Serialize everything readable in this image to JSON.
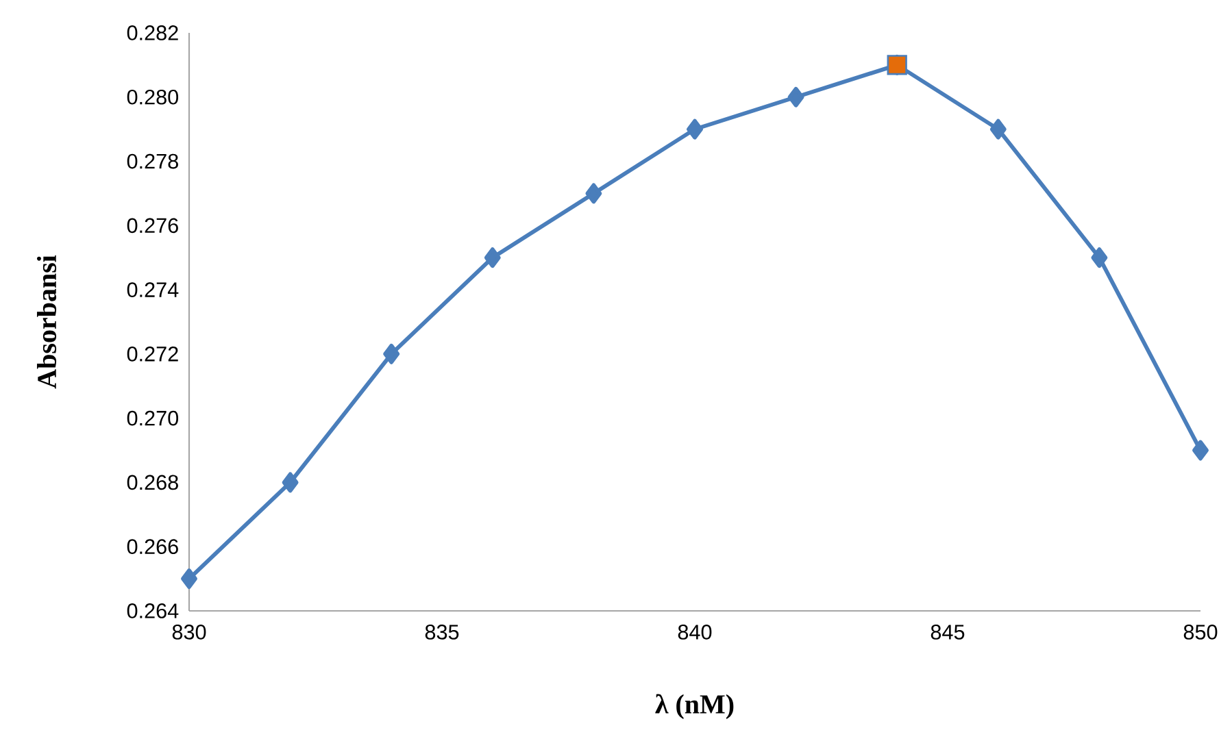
{
  "chart_data": {
    "type": "line",
    "xlabel": "λ (nM)",
    "ylabel": "Absorbansi",
    "xlim": [
      830,
      850
    ],
    "xticks": [
      830,
      835,
      840,
      845,
      850
    ],
    "ylim": [
      0.264,
      0.282
    ],
    "yticks": [
      {
        "value": 0.264,
        "label": "0.264"
      },
      {
        "value": 0.266,
        "label": "0.266"
      },
      {
        "value": 0.268,
        "label": "0.268"
      },
      {
        "value": 0.27,
        "label": "0.270"
      },
      {
        "value": 0.272,
        "label": "0.272"
      },
      {
        "value": 0.274,
        "label": "0.274"
      },
      {
        "value": 0.276,
        "label": "0.276"
      },
      {
        "value": 0.278,
        "label": "0.278"
      },
      {
        "value": 0.28,
        "label": "0.280"
      },
      {
        "value": 0.282,
        "label": "0.282"
      }
    ],
    "grid": false,
    "line_style": "solid",
    "series": [
      {
        "type": "line",
        "color": "#4a7ebb",
        "marker": "diamond",
        "x": [
          830,
          832,
          834,
          836,
          838,
          840,
          842,
          844,
          846,
          848,
          850
        ],
        "values": [
          0.265,
          0.268,
          0.272,
          0.275,
          0.277,
          0.279,
          0.28,
          0.281,
          0.279,
          0.275,
          0.269
        ]
      },
      {
        "type": "scatter",
        "color": "#e46c0a",
        "marker": "square",
        "x": [
          844
        ],
        "values": [
          0.281
        ]
      }
    ]
  }
}
